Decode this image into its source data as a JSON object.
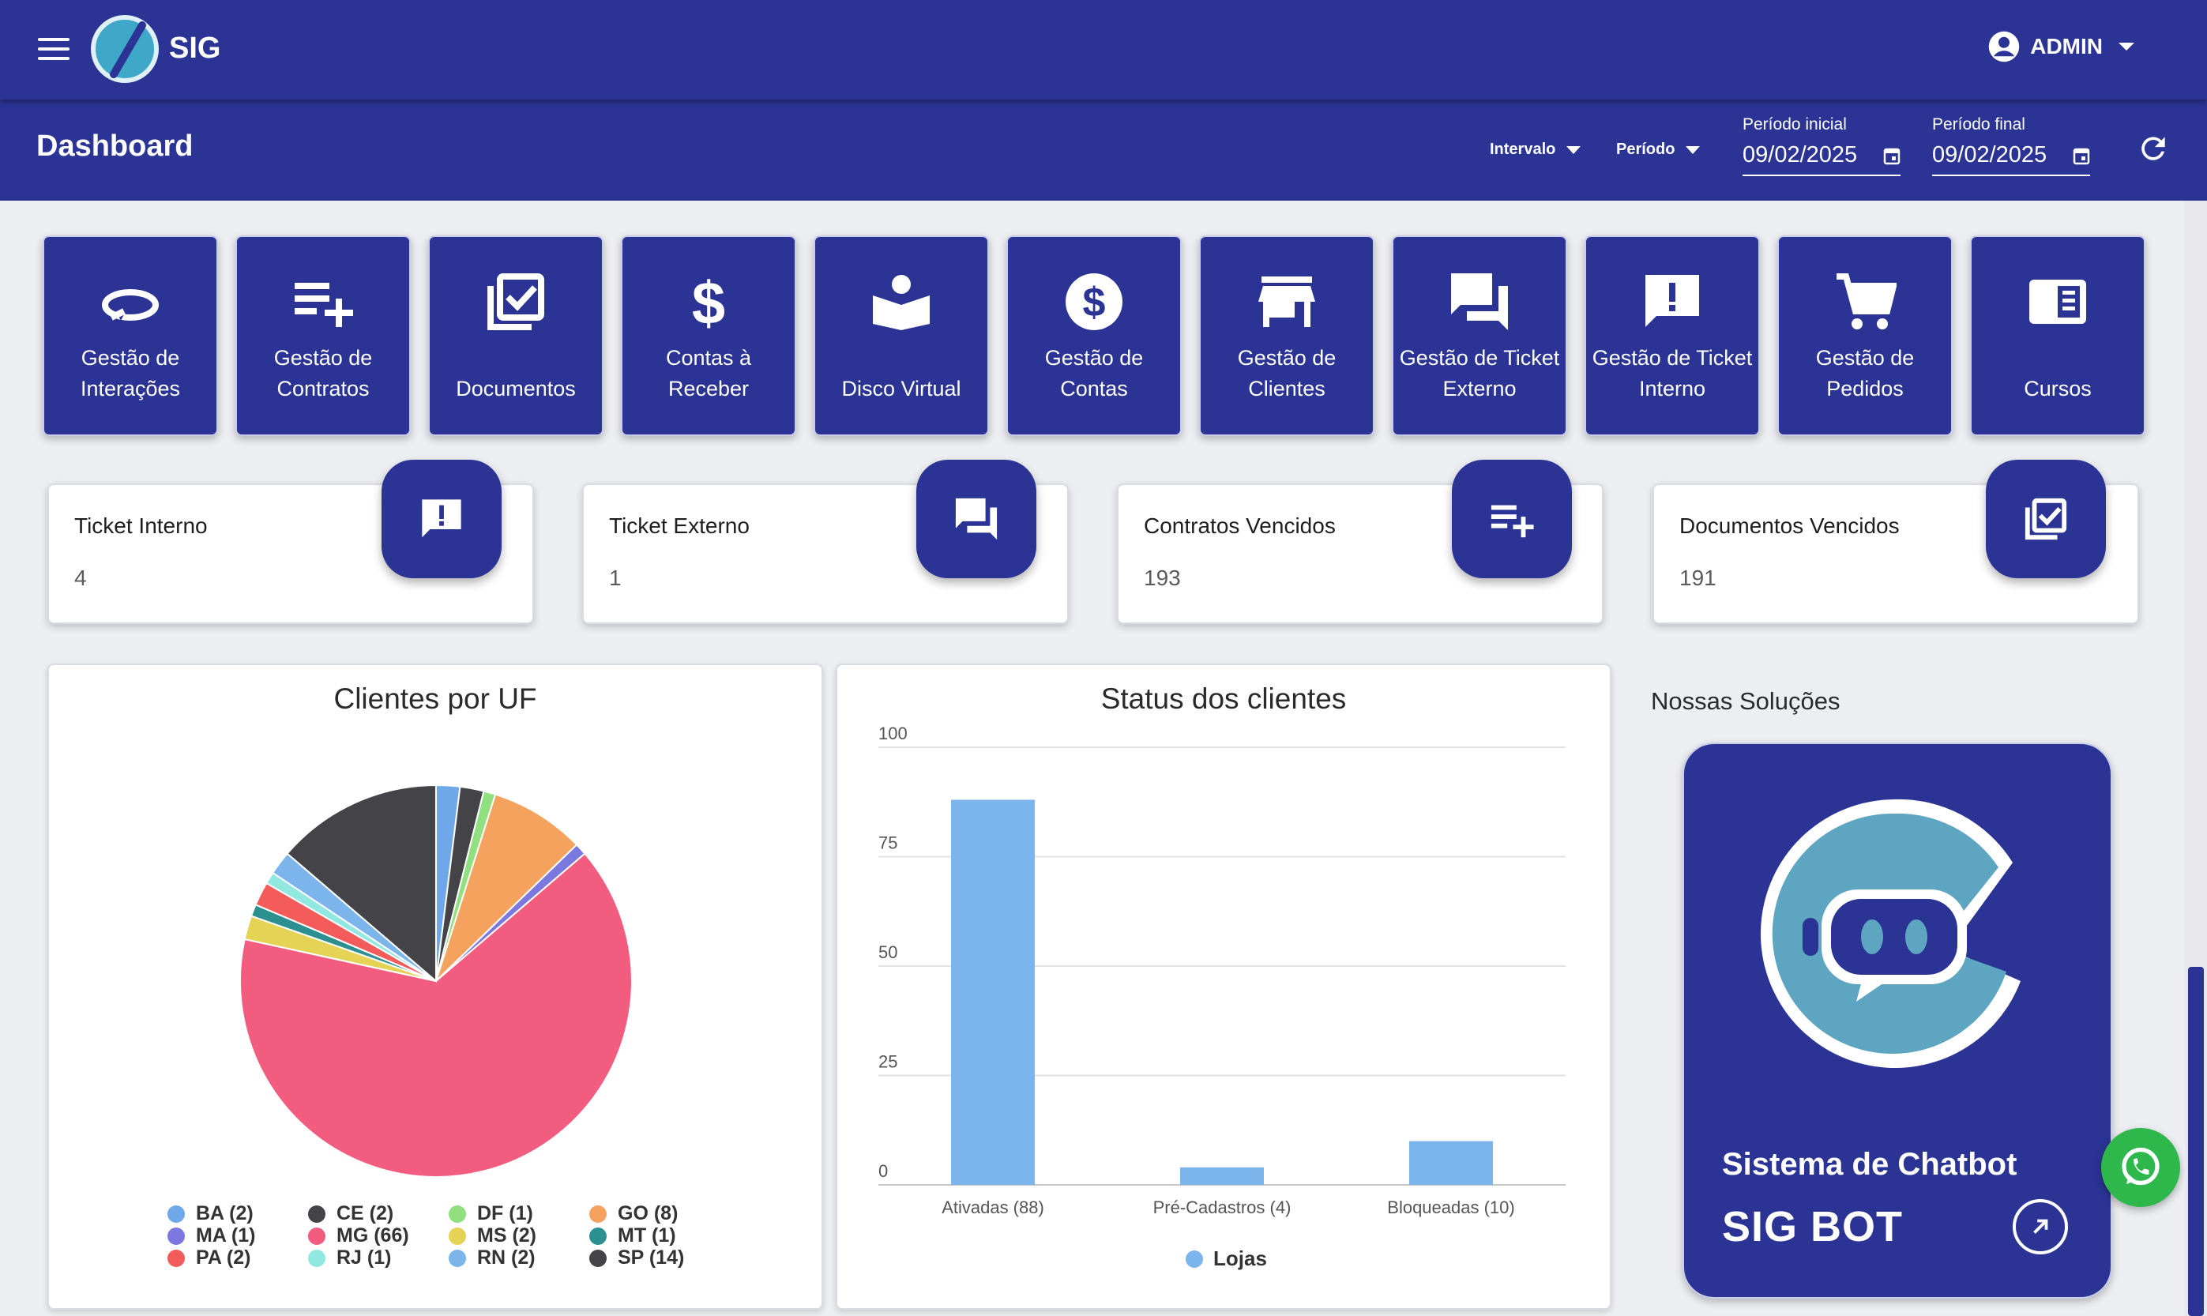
{
  "app": {
    "brand": "SIG",
    "user": "ADMIN"
  },
  "header": {
    "title": "Dashboard",
    "intervalo_label": "Intervalo",
    "periodo_label": "Período",
    "periodo_inicial_label": "Período inicial",
    "periodo_inicial_value": "09/02/2025",
    "periodo_final_label": "Período final",
    "periodo_final_value": "09/02/2025"
  },
  "tiles": [
    {
      "label": "Gestão de Interações",
      "icon": "interactions-icon"
    },
    {
      "label": "Gestão de Contratos",
      "icon": "playlist-add-icon"
    },
    {
      "label": "Documentos",
      "icon": "document-check-icon"
    },
    {
      "label": "Contas à Receber",
      "icon": "dollar-icon"
    },
    {
      "label": "Disco Virtual",
      "icon": "book-reader-icon"
    },
    {
      "label": "Gestão de Contas",
      "icon": "money-circle-icon"
    },
    {
      "label": "Gestão de Clientes",
      "icon": "store-icon"
    },
    {
      "label": "Gestão de Ticket Externo",
      "icon": "chat-icon"
    },
    {
      "label": "Gestão de Ticket Interno",
      "icon": "alert-message-icon"
    },
    {
      "label": "Gestão de Pedidos",
      "icon": "cart-icon"
    },
    {
      "label": "Cursos",
      "icon": "course-book-icon"
    }
  ],
  "stats": [
    {
      "title": "Ticket Interno",
      "value": "4",
      "icon": "alert-message-icon"
    },
    {
      "title": "Ticket Externo",
      "value": "1",
      "icon": "chat-icon"
    },
    {
      "title": "Contratos Vencidos",
      "value": "193",
      "icon": "playlist-add-icon"
    },
    {
      "title": "Documentos Vencidos",
      "value": "191",
      "icon": "document-check-icon"
    }
  ],
  "chart_data": [
    {
      "type": "pie",
      "title": "Clientes por UF",
      "slices": [
        {
          "label": "BA (2)",
          "name": "BA",
          "value": 2,
          "color": "#6fa8e8"
        },
        {
          "label": "CE (2)",
          "name": "CE",
          "value": 2,
          "color": "#444448"
        },
        {
          "label": "DF (1)",
          "name": "DF",
          "value": 1,
          "color": "#90e080"
        },
        {
          "label": "GO (8)",
          "name": "GO",
          "value": 8,
          "color": "#f4a25e"
        },
        {
          "label": "MA (1)",
          "name": "MA",
          "value": 1,
          "color": "#7b78e0"
        },
        {
          "label": "MG (66)",
          "name": "MG",
          "value": 66,
          "color": "#f25c7f"
        },
        {
          "label": "MS (2)",
          "name": "MS",
          "value": 2,
          "color": "#e4d354"
        },
        {
          "label": "MT (1)",
          "name": "MT",
          "value": 1,
          "color": "#2b908f"
        },
        {
          "label": "PA (2)",
          "name": "PA",
          "value": 2,
          "color": "#f45b5b"
        },
        {
          "label": "RJ (1)",
          "name": "RJ",
          "value": 1,
          "color": "#91e8e1"
        },
        {
          "label": "RN (2)",
          "name": "RN",
          "value": 2,
          "color": "#7cb5ec"
        },
        {
          "label": "SP (14)",
          "name": "SP",
          "value": 14,
          "color": "#434348"
        }
      ]
    },
    {
      "type": "bar",
      "title": "Status dos clientes",
      "categories": [
        "Ativadas (88)",
        "Pré-Cadastros (4)",
        "Bloqueadas (10)"
      ],
      "series": [
        {
          "name": "Lojas",
          "values": [
            88,
            4,
            10
          ],
          "color": "#7cb5ec"
        }
      ],
      "ylim": [
        0,
        100
      ],
      "yticks": [
        "0",
        "25",
        "50",
        "75",
        "100"
      ]
    }
  ],
  "solutions": {
    "title": "Nossas Soluções",
    "subtitle": "Sistema de Chatbot",
    "name": "SIG BOT"
  }
}
